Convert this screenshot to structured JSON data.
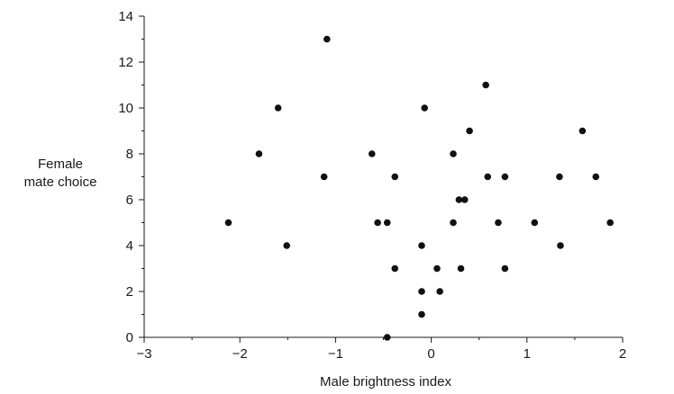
{
  "chart_data": {
    "type": "scatter",
    "xlabel": "Male brightness index",
    "ylabel_lines": [
      "Female",
      "mate choice"
    ],
    "xlim": [
      -3,
      2
    ],
    "ylim": [
      0,
      14
    ],
    "x_ticks": [
      -3,
      -2,
      -1,
      0,
      1,
      2
    ],
    "x_tick_labels": [
      "−3",
      "−2",
      "−1",
      "0",
      "1",
      "2"
    ],
    "y_ticks": [
      0,
      2,
      4,
      6,
      8,
      10,
      12,
      14
    ],
    "y_tick_labels": [
      "0",
      "2",
      "4",
      "6",
      "8",
      "10",
      "12",
      "14"
    ],
    "grid": false,
    "points": [
      {
        "x": -2.12,
        "y": 5
      },
      {
        "x": -1.8,
        "y": 8
      },
      {
        "x": -1.6,
        "y": 10
      },
      {
        "x": -1.51,
        "y": 4
      },
      {
        "x": -1.12,
        "y": 7
      },
      {
        "x": -1.09,
        "y": 13
      },
      {
        "x": -0.62,
        "y": 8
      },
      {
        "x": -0.56,
        "y": 5
      },
      {
        "x": -0.46,
        "y": 5
      },
      {
        "x": -0.46,
        "y": 0
      },
      {
        "x": -0.38,
        "y": 7
      },
      {
        "x": -0.38,
        "y": 3
      },
      {
        "x": -0.1,
        "y": 4
      },
      {
        "x": -0.1,
        "y": 2
      },
      {
        "x": -0.1,
        "y": 1
      },
      {
        "x": -0.07,
        "y": 10
      },
      {
        "x": 0.06,
        "y": 3
      },
      {
        "x": 0.09,
        "y": 2
      },
      {
        "x": 0.23,
        "y": 8
      },
      {
        "x": 0.23,
        "y": 5
      },
      {
        "x": 0.29,
        "y": 6
      },
      {
        "x": 0.31,
        "y": 3
      },
      {
        "x": 0.35,
        "y": 6
      },
      {
        "x": 0.4,
        "y": 9
      },
      {
        "x": 0.57,
        "y": 11
      },
      {
        "x": 0.59,
        "y": 7
      },
      {
        "x": 0.7,
        "y": 5
      },
      {
        "x": 0.77,
        "y": 7
      },
      {
        "x": 0.77,
        "y": 3
      },
      {
        "x": 1.08,
        "y": 5
      },
      {
        "x": 1.34,
        "y": 7
      },
      {
        "x": 1.35,
        "y": 4
      },
      {
        "x": 1.58,
        "y": 9
      },
      {
        "x": 1.72,
        "y": 7
      },
      {
        "x": 1.87,
        "y": 5
      }
    ]
  }
}
